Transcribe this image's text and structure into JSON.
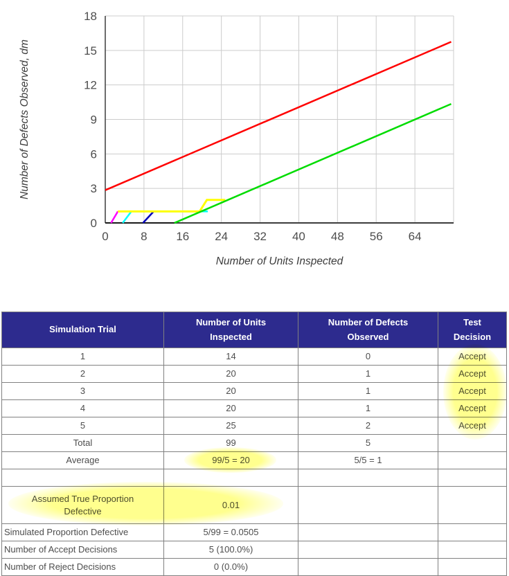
{
  "chart_data": {
    "type": "line",
    "title": "",
    "xlabel": "Number of Units Inspected",
    "ylabel": "Number of Defects Observed, dm",
    "xlim": [
      0,
      72
    ],
    "ylim": [
      0,
      18
    ],
    "xticks": [
      0,
      8,
      16,
      24,
      32,
      40,
      48,
      56,
      64
    ],
    "yticks": [
      0,
      3,
      6,
      9,
      12,
      15,
      18
    ],
    "grid": true,
    "legend": "none",
    "series": [
      {
        "name": "trial-1-path",
        "color": "#1a1a1a",
        "width": 2,
        "points": [
          [
            0,
            0
          ],
          [
            14.3,
            0
          ]
        ]
      },
      {
        "name": "trial-2-path",
        "color": "#ff00ff",
        "width": 2.5,
        "points": [
          [
            1.2,
            0
          ],
          [
            2.6,
            1
          ]
        ]
      },
      {
        "name": "trial-3-path",
        "color": "#00ffff",
        "width": 2.5,
        "points": [
          [
            3.6,
            0
          ],
          [
            5.4,
            1
          ],
          [
            21.2,
            1
          ]
        ]
      },
      {
        "name": "trial-4-path",
        "color": "#0000bb",
        "width": 2.5,
        "points": [
          [
            7.8,
            0
          ],
          [
            10,
            1
          ]
        ]
      },
      {
        "name": "trial-5-path",
        "color": "#ffff00",
        "width": 3,
        "points": [
          [
            2.6,
            1
          ],
          [
            19.5,
            1
          ],
          [
            21,
            2
          ],
          [
            24.8,
            2
          ]
        ]
      },
      {
        "name": "accept-boundary",
        "color": "#00dc00",
        "width": 2.5,
        "points": [
          [
            14.3,
            0
          ],
          [
            71.5,
            10.35
          ]
        ]
      },
      {
        "name": "reject-boundary",
        "color": "#ff0000",
        "width": 2.5,
        "points": [
          [
            0,
            2.85
          ],
          [
            71.5,
            15.75
          ]
        ]
      }
    ]
  },
  "table": {
    "headers": [
      "Simulation Trial",
      "Number of Units\nInspected",
      "Number of Defects\nObserved",
      "Test\nDecision"
    ],
    "rows": [
      [
        "1",
        "14",
        "0",
        "Accept"
      ],
      [
        "2",
        "20",
        "1",
        "Accept"
      ],
      [
        "3",
        "20",
        "1",
        "Accept"
      ],
      [
        "4",
        "20",
        "1",
        "Accept"
      ],
      [
        "5",
        "25",
        "2",
        "Accept"
      ],
      [
        "Total",
        "99",
        "5",
        ""
      ],
      [
        "Average",
        "99/5 = 20",
        "5/5 = 1",
        ""
      ],
      [
        "",
        "",
        "",
        ""
      ],
      [
        "Assumed True Proportion\nDefective",
        "0.01",
        "",
        ""
      ],
      [
        "Simulated Proportion Defective",
        "5/99 = 0.0505",
        "",
        ""
      ],
      [
        "Number of Accept Decisions",
        "5 (100.0%)",
        "",
        ""
      ],
      [
        "Number of Reject Decisions",
        "0 (0.0%)",
        "",
        ""
      ]
    ]
  },
  "colors": {
    "header_bg": "#2d2b8e",
    "header_text": "#ffffff",
    "body_text": "#4d4d4d",
    "grid_line": "#cccccc",
    "axis_line": "#3c3c3c",
    "highlight": "#ffff96",
    "table_border": "#808080"
  }
}
